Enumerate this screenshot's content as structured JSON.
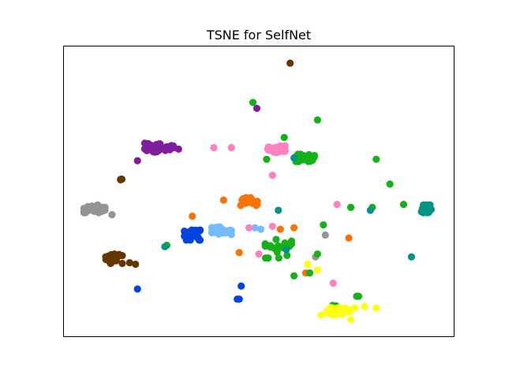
{
  "chart_data": {
    "type": "scatter",
    "title": "TSNE for SelfNet",
    "xlabel": "",
    "ylabel": "",
    "xlim": [
      0,
      100
    ],
    "ylim": [
      0,
      100
    ],
    "axes_ticks": false,
    "grid": false,
    "legend": "none",
    "series": [
      {
        "color": "#7e1e9c",
        "clusters": [
          {
            "center": [
              24.5,
              65
            ],
            "spread": [
              3.8,
              1.6
            ],
            "count": 38
          }
        ],
        "points": [
          [
            19,
            60.5
          ],
          [
            29.5,
            64.5
          ],
          [
            49.5,
            78.5
          ]
        ]
      },
      {
        "color": "#653700",
        "clusters": [
          {
            "center": [
              13,
              27
            ],
            "spread": [
              2.2,
              1.8
            ],
            "count": 24
          },
          {
            "center": [
              14.8,
              54
            ],
            "spread": [
              0.5,
              0.3
            ],
            "count": 4
          }
        ],
        "points": [
          [
            17,
            25.5
          ],
          [
            18.5,
            25
          ],
          [
            58,
            94
          ]
        ]
      },
      {
        "color": "#929591",
        "clusters": [
          {
            "center": [
              8,
              44
            ],
            "spread": [
              2.8,
              1.4
            ],
            "count": 34
          }
        ],
        "points": [
          [
            12.5,
            42
          ],
          [
            67,
            35
          ],
          [
            64.5,
            27.5
          ]
        ]
      },
      {
        "color": "#0343df",
        "clusters": [
          {
            "center": [
              32.5,
              35
            ],
            "spread": [
              2.6,
              1.8
            ],
            "count": 34
          }
        ],
        "points": [
          [
            19,
            16.5
          ],
          [
            45.5,
            17.5
          ],
          [
            44.5,
            13
          ],
          [
            45,
            13
          ],
          [
            57,
            30.5
          ]
        ]
      },
      {
        "color": "#75bbfd",
        "clusters": [
          {
            "center": [
              40.5,
              36.5
            ],
            "spread": [
              2.6,
              1.4
            ],
            "count": 32
          }
        ],
        "points": [
          [
            49,
            37.5
          ],
          [
            50.5,
            37
          ]
        ]
      },
      {
        "color": "#f97306",
        "clusters": [
          {
            "center": [
              47.5,
              46.5
            ],
            "spread": [
              2.2,
              1.4
            ],
            "count": 30
          }
        ],
        "points": [
          [
            41,
            47
          ],
          [
            33,
            41.5
          ],
          [
            45,
            29
          ],
          [
            55.5,
            37
          ],
          [
            59,
            37.5
          ],
          [
            62,
            22
          ],
          [
            73,
            34
          ]
        ]
      },
      {
        "color": "#ff81c0",
        "clusters": [
          {
            "center": [
              54.5,
              64.5
            ],
            "spread": [
              2.3,
              1.2
            ],
            "count": 28
          }
        ],
        "points": [
          [
            38.5,
            65
          ],
          [
            43,
            65
          ],
          [
            53.5,
            55.5
          ],
          [
            50,
            28.5
          ],
          [
            47.5,
            37.5
          ],
          [
            53.5,
            38
          ],
          [
            70,
            45.5
          ],
          [
            69,
            18.5
          ]
        ]
      },
      {
        "color": "#15b01a",
        "clusters": [
          {
            "center": [
              62,
              61.5
            ],
            "spread": [
              2.6,
              1.3
            ],
            "count": 26
          },
          {
            "center": [
              55,
              30.5
            ],
            "spread": [
              3.5,
              3.5
            ],
            "count": 18
          },
          {
            "center": [
              69,
              10.5
            ],
            "spread": [
              1.2,
              0.8
            ],
            "count": 5
          }
        ],
        "points": [
          [
            48.5,
            80.5
          ],
          [
            65,
            74.5
          ],
          [
            56.5,
            68.5
          ],
          [
            52,
            61
          ],
          [
            80,
            61
          ],
          [
            83.5,
            52.5
          ],
          [
            87,
            45.5
          ],
          [
            79,
            44.5
          ],
          [
            73.5,
            44.5
          ],
          [
            66.5,
            38.5
          ],
          [
            65,
            28.5
          ],
          [
            59,
            21
          ],
          [
            63,
            22
          ],
          [
            26.5,
            31.5
          ],
          [
            75,
            14
          ],
          [
            75.5,
            14
          ]
        ]
      },
      {
        "color": "#029386",
        "clusters": [
          {
            "center": [
              92.8,
              44
            ],
            "spread": [
              1.3,
              1.4
            ],
            "count": 24
          }
        ],
        "points": [
          [
            55,
            43.5
          ],
          [
            59,
            61.5
          ],
          [
            26,
            31
          ],
          [
            57,
            30
          ],
          [
            78.5,
            43.5
          ],
          [
            89,
            27.5
          ]
        ]
      },
      {
        "color": "#ffff14",
        "clusters": [
          {
            "center": [
              69.5,
              9
            ],
            "spread": [
              3.8,
              1.5
            ],
            "count": 32
          }
        ],
        "points": [
          [
            62.5,
            25
          ],
          [
            65,
            23
          ],
          [
            74.5,
            10
          ],
          [
            77,
            10.5
          ],
          [
            80,
            10
          ],
          [
            73.5,
            6
          ]
        ]
      }
    ]
  }
}
